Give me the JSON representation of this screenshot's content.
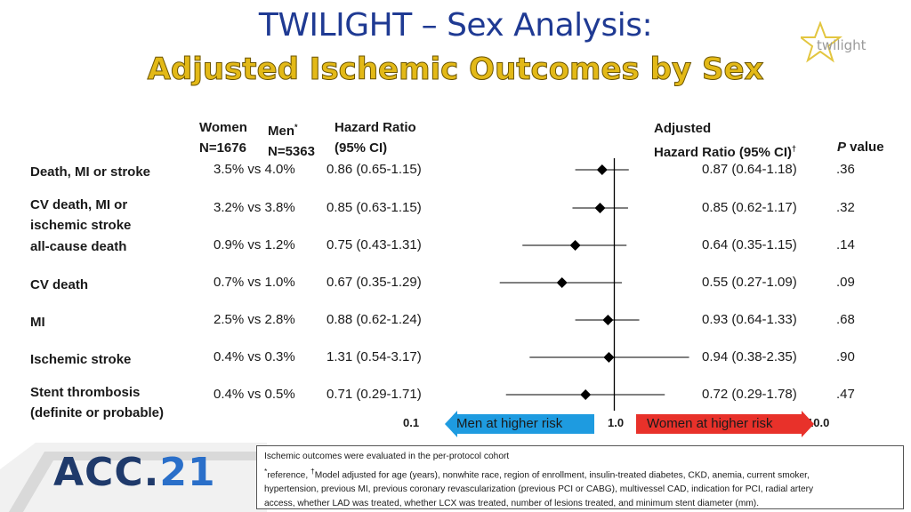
{
  "title": "TWILIGHT – Sex Analysis:",
  "subtitle": "Adjusted Ischemic Outcomes by Sex",
  "logo_text": "twilight",
  "headers": {
    "women_line1": "Women",
    "women_line2": "N=1676",
    "men_line1": "Men",
    "men_sup": "*",
    "men_line2": "N=5363",
    "hr_line1": "Hazard Ratio",
    "hr_line2": "(95% CI)",
    "adj_line1": "Adjusted",
    "adj_line2": "Hazard Ratio (95% CI)",
    "adj_sup": "†",
    "p_label_italic": "P",
    "p_label_rest": " value"
  },
  "chart_data": {
    "type": "forest",
    "x_scale": "log",
    "xlim": [
      0.1,
      10.0
    ],
    "x_ticks": [
      "0.1",
      "1.0",
      "10.0"
    ],
    "reference_line": 1.0,
    "left_arrow_label": "Men at higher risk",
    "right_arrow_label": "Women at higher risk",
    "rows": [
      {
        "label_lines": [
          "Death, MI or stroke"
        ],
        "rates": "3.5% vs 4.0%",
        "hr": "0.86 (0.65-1.15)",
        "adj_text": "0.87 (0.64-1.18)",
        "p": ".36",
        "est": 0.87,
        "lo": 0.64,
        "hi": 1.18
      },
      {
        "label_lines": [
          "CV death, MI or",
          "ischemic stroke"
        ],
        "rates": "3.2% vs 3.8%",
        "hr": "0.85 (0.63-1.15)",
        "adj_text": "0.85 (0.62-1.17)",
        "p": ".32",
        "est": 0.85,
        "lo": 0.62,
        "hi": 1.17
      },
      {
        "label_lines": [
          "all-cause death"
        ],
        "rates": "0.9% vs 1.2%",
        "hr": "0.75 (0.43-1.31)",
        "adj_text": "0.64 (0.35-1.15)",
        "p": ".14",
        "est": 0.64,
        "lo": 0.35,
        "hi": 1.15
      },
      {
        "label_lines": [
          "CV death"
        ],
        "rates": "0.7% vs 1.0%",
        "hr": "0.67 (0.35-1.29)",
        "adj_text": "0.55 (0.27-1.09)",
        "p": ".09",
        "est": 0.55,
        "lo": 0.27,
        "hi": 1.09
      },
      {
        "label_lines": [
          "MI"
        ],
        "rates": "2.5% vs 2.8%",
        "hr": "0.88 (0.62-1.24)",
        "adj_text": "0.93 (0.64-1.33)",
        "p": ".68",
        "est": 0.93,
        "lo": 0.64,
        "hi": 1.33
      },
      {
        "label_lines": [
          "Ischemic stroke"
        ],
        "rates": "0.4% vs 0.3%",
        "hr": "1.31 (0.54-3.17)",
        "adj_text": "0.94 (0.38-2.35)",
        "p": ".90",
        "est": 0.94,
        "lo": 0.38,
        "hi": 2.35
      },
      {
        "label_lines": [
          "Stent thrombosis",
          "(definite or probable)"
        ],
        "rates": "0.4% vs 0.5%",
        "hr": "0.71 (0.29-1.71)",
        "adj_text": "0.72 (0.29-1.78)",
        "p": ".47",
        "est": 0.72,
        "lo": 0.29,
        "hi": 1.78
      }
    ]
  },
  "footnote": {
    "line1": "Ischemic outcomes were evaluated in the per-protocol cohort",
    "line2_sup1": "*",
    "line2_a": "reference, ",
    "line2_sup2": "†",
    "line2_b": "Model adjusted for age (years), nonwhite race, region of enrollment, insulin-treated diabetes, CKD, anemia, current smoker,",
    "line3": "hypertension, previous MI, previous coronary revascularization (previous PCI or CABG), multivessel CAD, indication for PCI, radial artery",
    "line4": "access, whether LAD was treated, whether LCX was treated, number of lesions treated, and minimum stent diameter (mm)."
  },
  "conference_logo": {
    "prefix": "ACC.",
    "number": "21"
  },
  "colors": {
    "title": "#1f3a93",
    "subtitle": "#e3b917",
    "men_arrow": "#1e9be0",
    "women_arrow": "#e8312a",
    "point": "#000000"
  }
}
